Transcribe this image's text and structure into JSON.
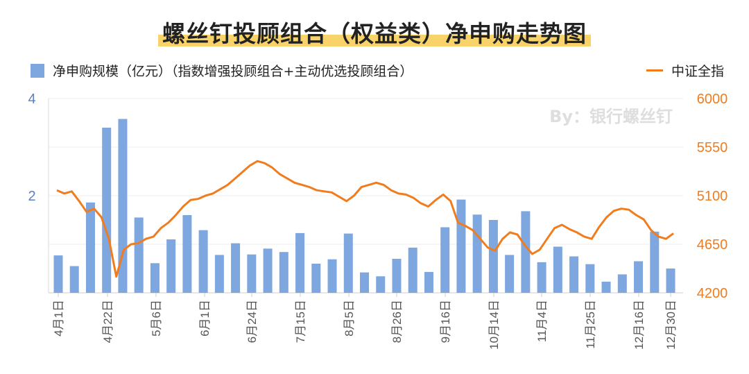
{
  "title": "螺丝钉投顾组合（权益类）净申购走势图",
  "legend": {
    "bar_label": "净申购规模（亿元）（指数增强投顾组合+主动优选投顾组合）",
    "line_label": "中证全指"
  },
  "watermark": "By：银行螺丝钉",
  "colors": {
    "bar": "#7ea6df",
    "line": "#f07c1e",
    "left_axis": "#5b7fc0",
    "right_axis": "#f07c1e",
    "highlight": "#f8d36a"
  },
  "chart_data": {
    "type": "bar",
    "title": "螺丝钉投顾组合（权益类）净申购走势图",
    "x_tick_labels": [
      "4月1日",
      "4月22日",
      "5月6日",
      "6月1日",
      "6月24日",
      "7月15日",
      "8月5日",
      "8月26日",
      "9月16日",
      "10月14日",
      "11月4日",
      "11月25日",
      "12月16日",
      "12月30日"
    ],
    "left_axis": {
      "ticks": [
        "4",
        "2"
      ],
      "ylim": [
        0,
        4
      ]
    },
    "right_axis": {
      "ticks": [
        "6000",
        "5550",
        "5100",
        "4650",
        "4200"
      ],
      "ylim": [
        4200,
        6000
      ]
    },
    "series": [
      {
        "name": "净申购规模（亿元）（指数增强投顾组合+主动优选投顾组合）",
        "type": "bar",
        "axis": "left",
        "values": [
          0.77,
          0.55,
          1.86,
          3.4,
          3.58,
          1.55,
          0.61,
          1.1,
          1.6,
          1.29,
          0.78,
          1.02,
          0.79,
          0.91,
          0.84,
          1.23,
          0.6,
          0.69,
          1.22,
          0.42,
          0.34,
          0.7,
          0.93,
          0.43,
          1.35,
          1.92,
          1.61,
          1.5,
          0.78,
          1.68,
          0.63,
          0.95,
          0.75,
          0.59,
          0.23,
          0.38,
          0.65,
          1.26,
          0.5
        ]
      },
      {
        "name": "中证全指",
        "type": "line",
        "axis": "right",
        "values": [
          5150,
          5120,
          5140,
          5050,
          4950,
          4980,
          4900,
          4700,
          4350,
          4600,
          4650,
          4660,
          4700,
          4720,
          4800,
          4850,
          4920,
          5000,
          5060,
          5070,
          5100,
          5120,
          5160,
          5200,
          5260,
          5320,
          5380,
          5420,
          5400,
          5360,
          5300,
          5260,
          5220,
          5200,
          5180,
          5150,
          5140,
          5130,
          5090,
          5050,
          5100,
          5180,
          5200,
          5220,
          5200,
          5150,
          5120,
          5110,
          5080,
          5030,
          5000,
          5060,
          5110,
          5050,
          4850,
          4820,
          4780,
          4700,
          4620,
          4590,
          4700,
          4760,
          4740,
          4640,
          4560,
          4600,
          4700,
          4800,
          4830,
          4790,
          4760,
          4720,
          4700,
          4810,
          4900,
          4960,
          4980,
          4970,
          4920,
          4880,
          4780,
          4720,
          4700,
          4750
        ]
      }
    ]
  }
}
